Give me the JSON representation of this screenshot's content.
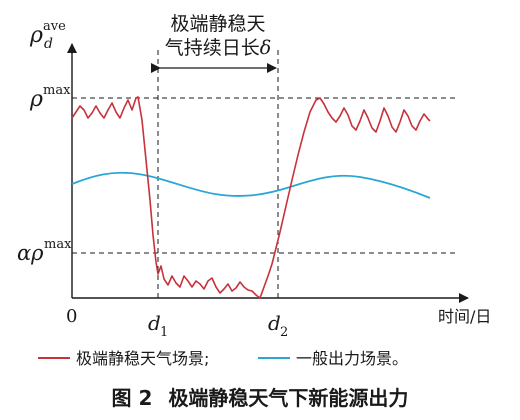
{
  "annotation": {
    "line1": "极端静稳天",
    "line2": "气持续日长",
    "delta": "δ"
  },
  "axes": {
    "y_symbol": "ρ",
    "y_sup": "ave",
    "y_sub": "d",
    "rho_max_symbol": "ρ",
    "rho_max_sup": "max",
    "alpha_symbol": "αρ",
    "alpha_sup": "max",
    "origin": "0",
    "d1_symbol": "d",
    "d1_sub": "1",
    "d2_symbol": "d",
    "d2_sub": "2",
    "x_label": "时间/日"
  },
  "legend": {
    "extreme": "极端静稳天气场景;",
    "general": "一般出力场景。"
  },
  "caption": {
    "number": "图 2",
    "text": "极端静稳天气下新能源出力"
  },
  "colors": {
    "extreme": "#c8323a",
    "general": "#2aa6d6",
    "axis": "#1a1a1a"
  }
}
